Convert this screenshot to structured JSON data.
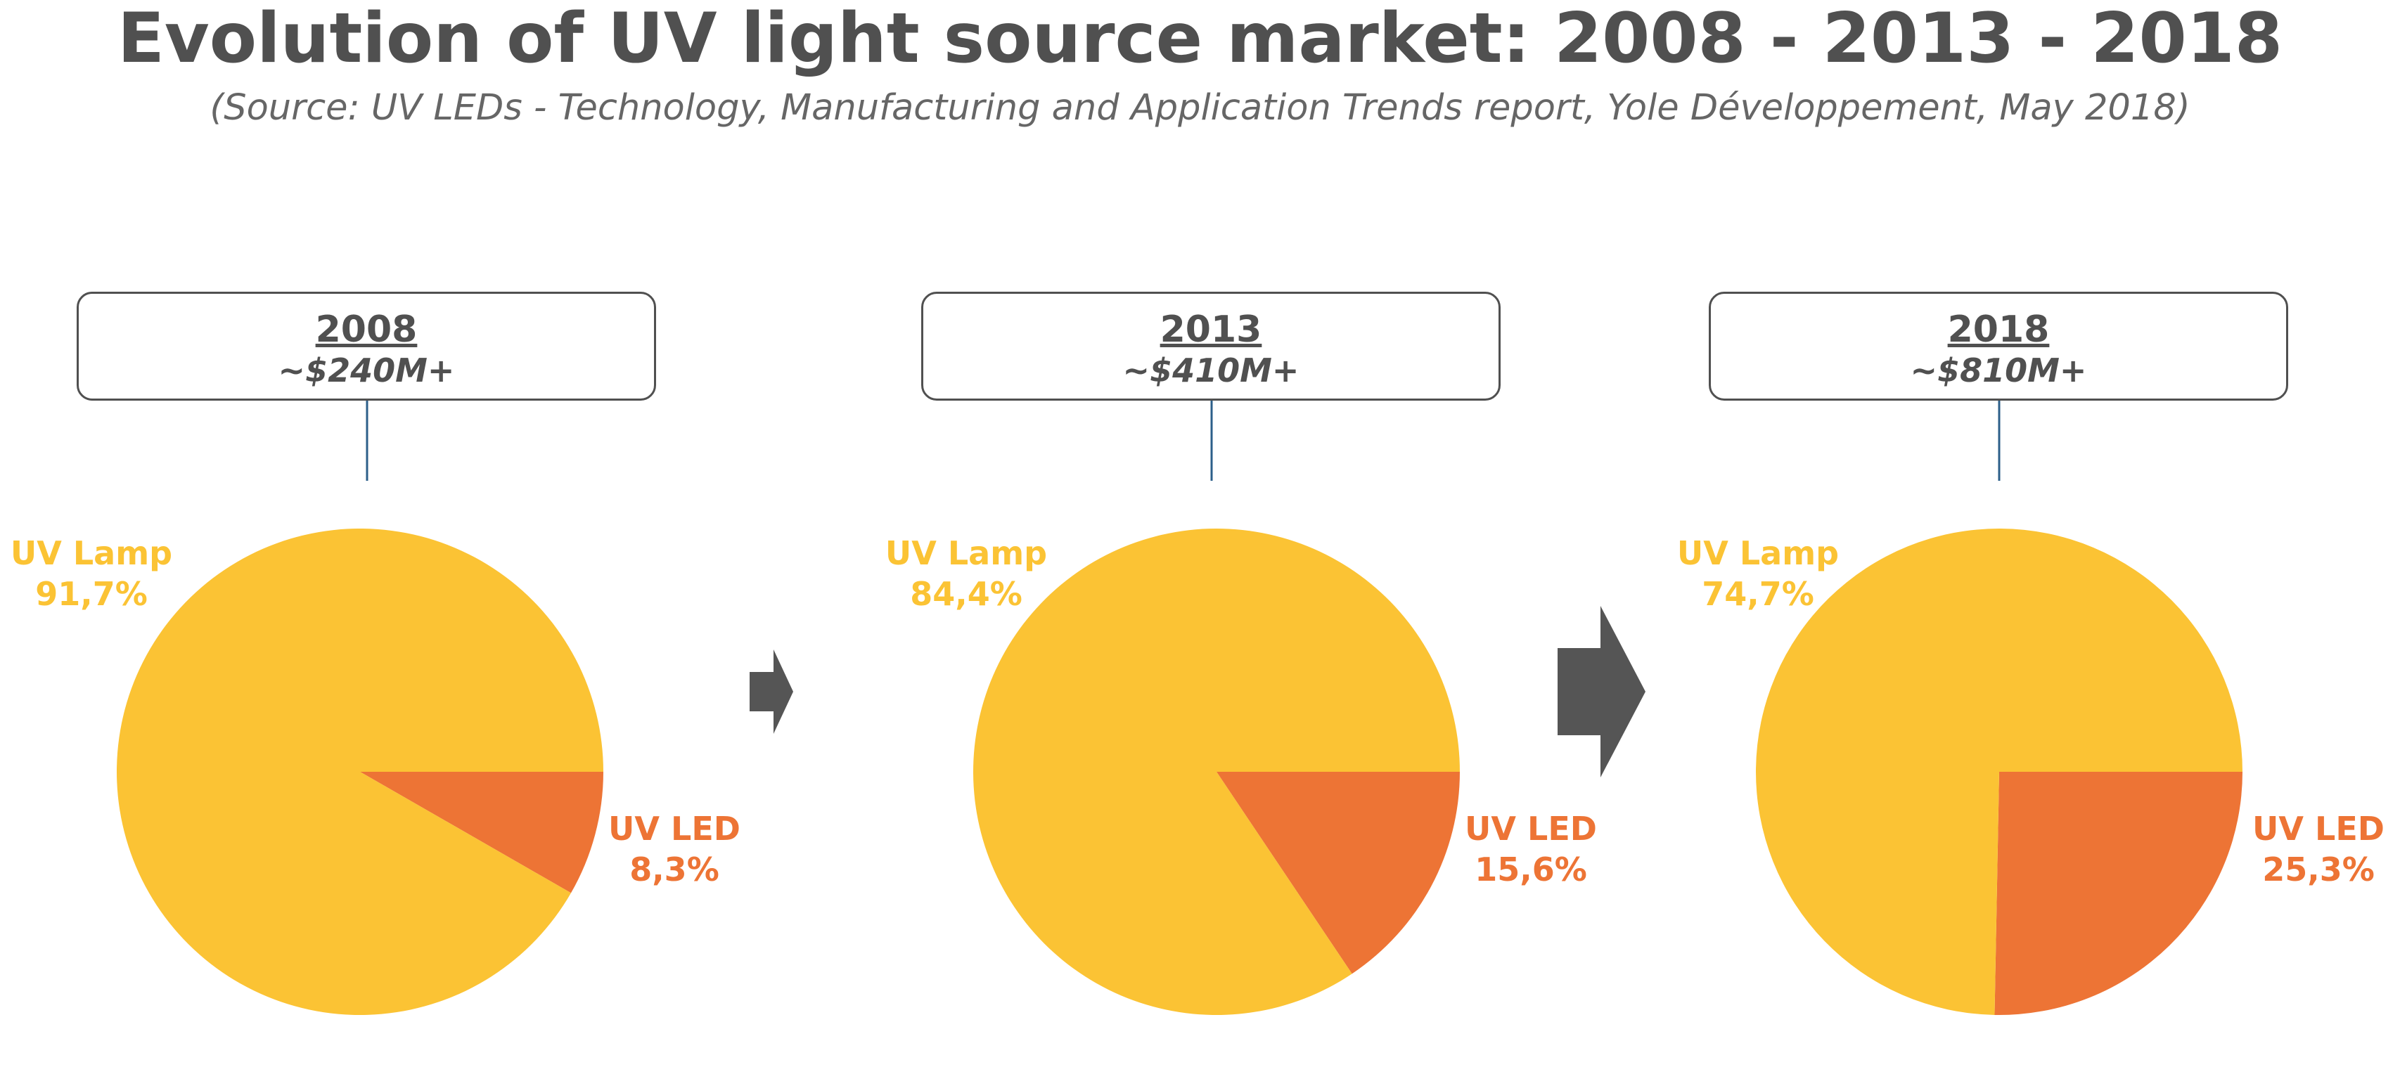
{
  "title": "Evolution of UV light source market: 2008 - 2013 - 2018",
  "subtitle": "(Source: UV LEDs - Technology, Manufacturing and Application Trends report, Yole Développement, May 2018)",
  "colors": {
    "uv_lamp": "#FBC334",
    "uv_led": "#ED7435",
    "arrow": "#555555",
    "connector": "#2C5F8A"
  },
  "chart_data": [
    {
      "type": "pie",
      "title": "2008",
      "subtitle": "~$240M+",
      "slices": [
        {
          "label": "UV Lamp",
          "value": 91.7,
          "value_text": "91,7%"
        },
        {
          "label": "UV LED",
          "value": 8.3,
          "value_text": "8,3%"
        }
      ]
    },
    {
      "type": "pie",
      "title": "2013",
      "subtitle": "~$410M+",
      "slices": [
        {
          "label": "UV Lamp",
          "value": 84.4,
          "value_text": "84,4%"
        },
        {
          "label": "UV LED",
          "value": 15.6,
          "value_text": "15,6%"
        }
      ]
    },
    {
      "type": "pie",
      "title": "2018",
      "subtitle": "~$810M+",
      "slices": [
        {
          "label": "UV Lamp",
          "value": 74.7,
          "value_text": "74,7%"
        },
        {
          "label": "UV LED",
          "value": 25.3,
          "value_text": "25,3%"
        }
      ]
    }
  ]
}
